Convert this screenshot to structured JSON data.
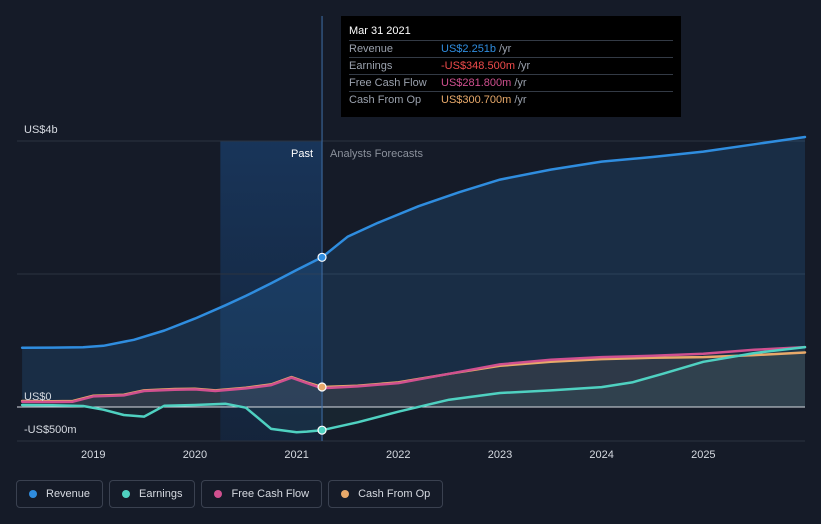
{
  "tooltip": {
    "date": "Mar 31 2021",
    "rows": [
      {
        "label": "Revenue",
        "value": "US$2.251b",
        "unit": "/yr",
        "color": "#2f8ddf"
      },
      {
        "label": "Earnings",
        "value": "-US$348.500m",
        "unit": "/yr",
        "color": "#ef4b4b"
      },
      {
        "label": "Free Cash Flow",
        "value": "US$281.800m",
        "unit": "/yr",
        "color": "#d0508f"
      },
      {
        "label": "Cash From Op",
        "value": "US$300.700m",
        "unit": "/yr",
        "color": "#e8a96a"
      }
    ]
  },
  "legend": [
    {
      "label": "Revenue",
      "color": "#2f8ddf"
    },
    {
      "label": "Earnings",
      "color": "#4fd1c1"
    },
    {
      "label": "Free Cash Flow",
      "color": "#d0508f"
    },
    {
      "label": "Cash From Op",
      "color": "#e8a96a"
    }
  ],
  "chart_data": {
    "type": "line",
    "y_unit_label": "US$ (millions)",
    "ylim": [
      -500,
      4000
    ],
    "y_ticks": [
      {
        "value": 4000,
        "label": "US$4b"
      },
      {
        "value": 0,
        "label": "US$0"
      },
      {
        "value": -500,
        "label": "-US$500m"
      }
    ],
    "x_range": [
      2018.25,
      2026.0
    ],
    "x_ticks": [
      "2019",
      "2020",
      "2021",
      "2022",
      "2023",
      "2024",
      "2025"
    ],
    "past_label": "Past",
    "forecast_label": "Analysts Forecasts",
    "past_end": 2021.25,
    "highlight_start": 2020.25,
    "series": [
      {
        "name": "Revenue",
        "color": "#2f8ddf",
        "fill": true,
        "points": [
          [
            2018.3,
            890
          ],
          [
            2018.6,
            893
          ],
          [
            2018.9,
            897
          ],
          [
            2019.1,
            920
          ],
          [
            2019.4,
            1010
          ],
          [
            2019.7,
            1150
          ],
          [
            2020.0,
            1330
          ],
          [
            2020.3,
            1530
          ],
          [
            2020.5,
            1670
          ],
          [
            2020.75,
            1860
          ],
          [
            2021.0,
            2060
          ],
          [
            2021.25,
            2251
          ],
          [
            2021.5,
            2560
          ],
          [
            2021.8,
            2770
          ],
          [
            2022.2,
            3020
          ],
          [
            2022.6,
            3230
          ],
          [
            2023.0,
            3420
          ],
          [
            2023.5,
            3570
          ],
          [
            2024.0,
            3690
          ],
          [
            2024.5,
            3760
          ],
          [
            2025.0,
            3840
          ],
          [
            2025.5,
            3950
          ],
          [
            2026.0,
            4060
          ]
        ]
      },
      {
        "name": "Earnings",
        "color": "#4fd1c1",
        "fill": false,
        "points": [
          [
            2018.3,
            30
          ],
          [
            2018.6,
            25
          ],
          [
            2018.9,
            15
          ],
          [
            2019.1,
            -40
          ],
          [
            2019.3,
            -120
          ],
          [
            2019.5,
            -145
          ],
          [
            2019.7,
            20
          ],
          [
            2020.0,
            30
          ],
          [
            2020.3,
            50
          ],
          [
            2020.5,
            -10
          ],
          [
            2020.75,
            -330
          ],
          [
            2021.0,
            -380
          ],
          [
            2021.1,
            -370
          ],
          [
            2021.25,
            -348.5
          ],
          [
            2021.6,
            -230
          ],
          [
            2022.0,
            -70
          ],
          [
            2022.5,
            110
          ],
          [
            2023.0,
            210
          ],
          [
            2023.5,
            250
          ],
          [
            2024.0,
            300
          ],
          [
            2024.3,
            370
          ],
          [
            2024.6,
            500
          ],
          [
            2025.0,
            680
          ],
          [
            2025.5,
            810
          ],
          [
            2026.0,
            900
          ]
        ]
      },
      {
        "name": "Free Cash Flow",
        "color": "#d0508f",
        "fill": false,
        "points": [
          [
            2018.3,
            80
          ],
          [
            2018.6,
            75
          ],
          [
            2018.8,
            80
          ],
          [
            2019.0,
            160
          ],
          [
            2019.3,
            175
          ],
          [
            2019.5,
            240
          ],
          [
            2019.8,
            260
          ],
          [
            2020.0,
            265
          ],
          [
            2020.2,
            240
          ],
          [
            2020.5,
            280
          ],
          [
            2020.75,
            330
          ],
          [
            2020.95,
            440
          ],
          [
            2021.1,
            360
          ],
          [
            2021.25,
            281.8
          ],
          [
            2021.6,
            310
          ],
          [
            2022.0,
            360
          ],
          [
            2022.5,
            500
          ],
          [
            2023.0,
            640
          ],
          [
            2023.5,
            710
          ],
          [
            2024.0,
            750
          ],
          [
            2024.5,
            770
          ],
          [
            2025.0,
            800
          ],
          [
            2025.5,
            860
          ],
          [
            2026.0,
            900
          ]
        ]
      },
      {
        "name": "Cash From Op",
        "color": "#e8a96a",
        "fill": true,
        "points": [
          [
            2018.3,
            90
          ],
          [
            2018.6,
            85
          ],
          [
            2018.8,
            90
          ],
          [
            2019.0,
            170
          ],
          [
            2019.3,
            185
          ],
          [
            2019.5,
            250
          ],
          [
            2019.8,
            270
          ],
          [
            2020.0,
            275
          ],
          [
            2020.2,
            250
          ],
          [
            2020.5,
            290
          ],
          [
            2020.75,
            340
          ],
          [
            2020.95,
            450
          ],
          [
            2021.1,
            370
          ],
          [
            2021.25,
            300.7
          ],
          [
            2021.6,
            320
          ],
          [
            2022.0,
            370
          ],
          [
            2022.5,
            500
          ],
          [
            2023.0,
            620
          ],
          [
            2023.5,
            680
          ],
          [
            2024.0,
            720
          ],
          [
            2024.5,
            740
          ],
          [
            2025.0,
            750
          ],
          [
            2025.5,
            780
          ],
          [
            2026.0,
            820
          ]
        ]
      }
    ],
    "markers": [
      {
        "series": "Revenue",
        "x": 2021.25,
        "y": 2251
      },
      {
        "series": "Earnings",
        "x": 2021.25,
        "y": -348.5
      },
      {
        "series": "Cash From Op",
        "x": 2021.25,
        "y": 300.7
      }
    ]
  }
}
